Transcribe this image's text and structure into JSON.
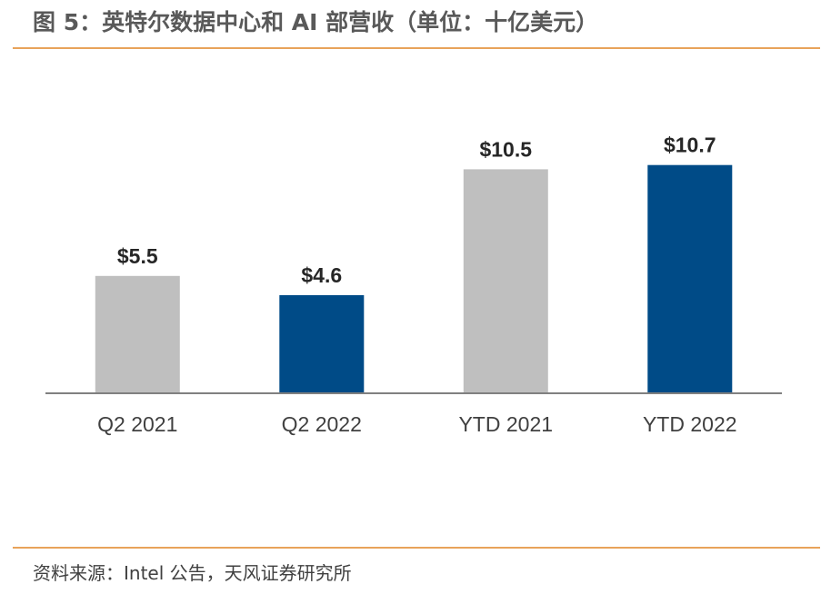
{
  "header": {
    "title": "图 5：英特尔数据中心和 AI 部营收（单位：十亿美元）"
  },
  "footer": {
    "source": "资料来源：Intel 公告，天风证券研究所"
  },
  "colors": {
    "rule": "#e8a35a",
    "gray_bar": "#bfbfbf",
    "blue_bar": "#004b87",
    "axis": "#808080",
    "text": "#404040"
  },
  "chart_data": {
    "type": "bar",
    "categories": [
      "Q2 2021",
      "Q2 2022",
      "YTD 2021",
      "YTD 2022"
    ],
    "values": [
      5.5,
      4.6,
      10.5,
      10.7
    ],
    "data_labels": [
      "$5.5",
      "$4.6",
      "$10.5",
      "$10.7"
    ],
    "bar_colors": [
      "#bfbfbf",
      "#004b87",
      "#bfbfbf",
      "#004b87"
    ],
    "title": "",
    "xlabel": "",
    "ylabel": "",
    "ylim": [
      0,
      11.2
    ],
    "grid": false,
    "legend": "none"
  }
}
